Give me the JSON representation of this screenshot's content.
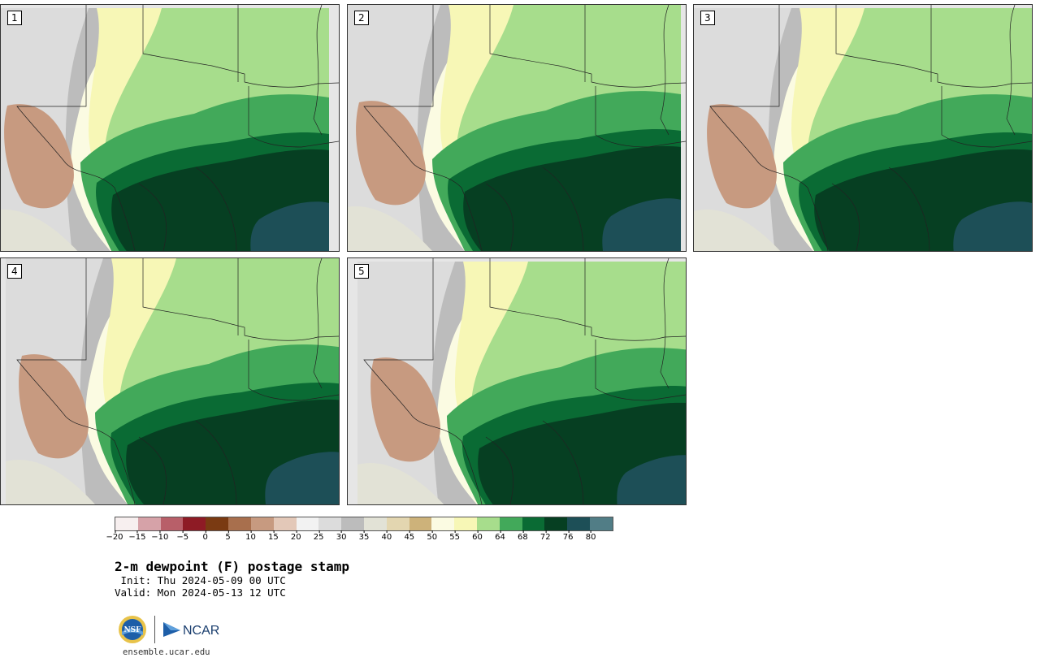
{
  "panels": [
    {
      "label": "1"
    },
    {
      "label": "2"
    },
    {
      "label": "3"
    },
    {
      "label": "4"
    },
    {
      "label": "5"
    }
  ],
  "colorbar": {
    "colors": [
      "#f7efef",
      "#d6a2a8",
      "#b85f69",
      "#8e1b25",
      "#7a3a12",
      "#a86f4d",
      "#c79a80",
      "#e3c8b8",
      "#f2f2f2",
      "#dcdcdc",
      "#bcbcbc",
      "#e2e2d6",
      "#e3d6b0",
      "#cdb27a",
      "#fbfbe2",
      "#f7f7b6",
      "#a7dd8c",
      "#42a95a",
      "#0a6b34",
      "#063f22",
      "#1d4f57",
      "#517d86"
    ],
    "ticks": [
      "−20",
      "−15",
      "−10",
      "−5",
      "0",
      "5",
      "10",
      "15",
      "20",
      "25",
      "30",
      "35",
      "40",
      "45",
      "50",
      "55",
      "60",
      "64",
      "68",
      "72",
      "76",
      "80"
    ]
  },
  "title": "2-m dewpoint (F) postage stamp",
  "init": " Init: Thu 2024-05-09 00 UTC",
  "valid": "Valid: Mon 2024-05-13 12 UTC",
  "logos": {
    "left": "NSF",
    "right": "NCAR"
  },
  "url": "ensemble.ucar.edu"
}
